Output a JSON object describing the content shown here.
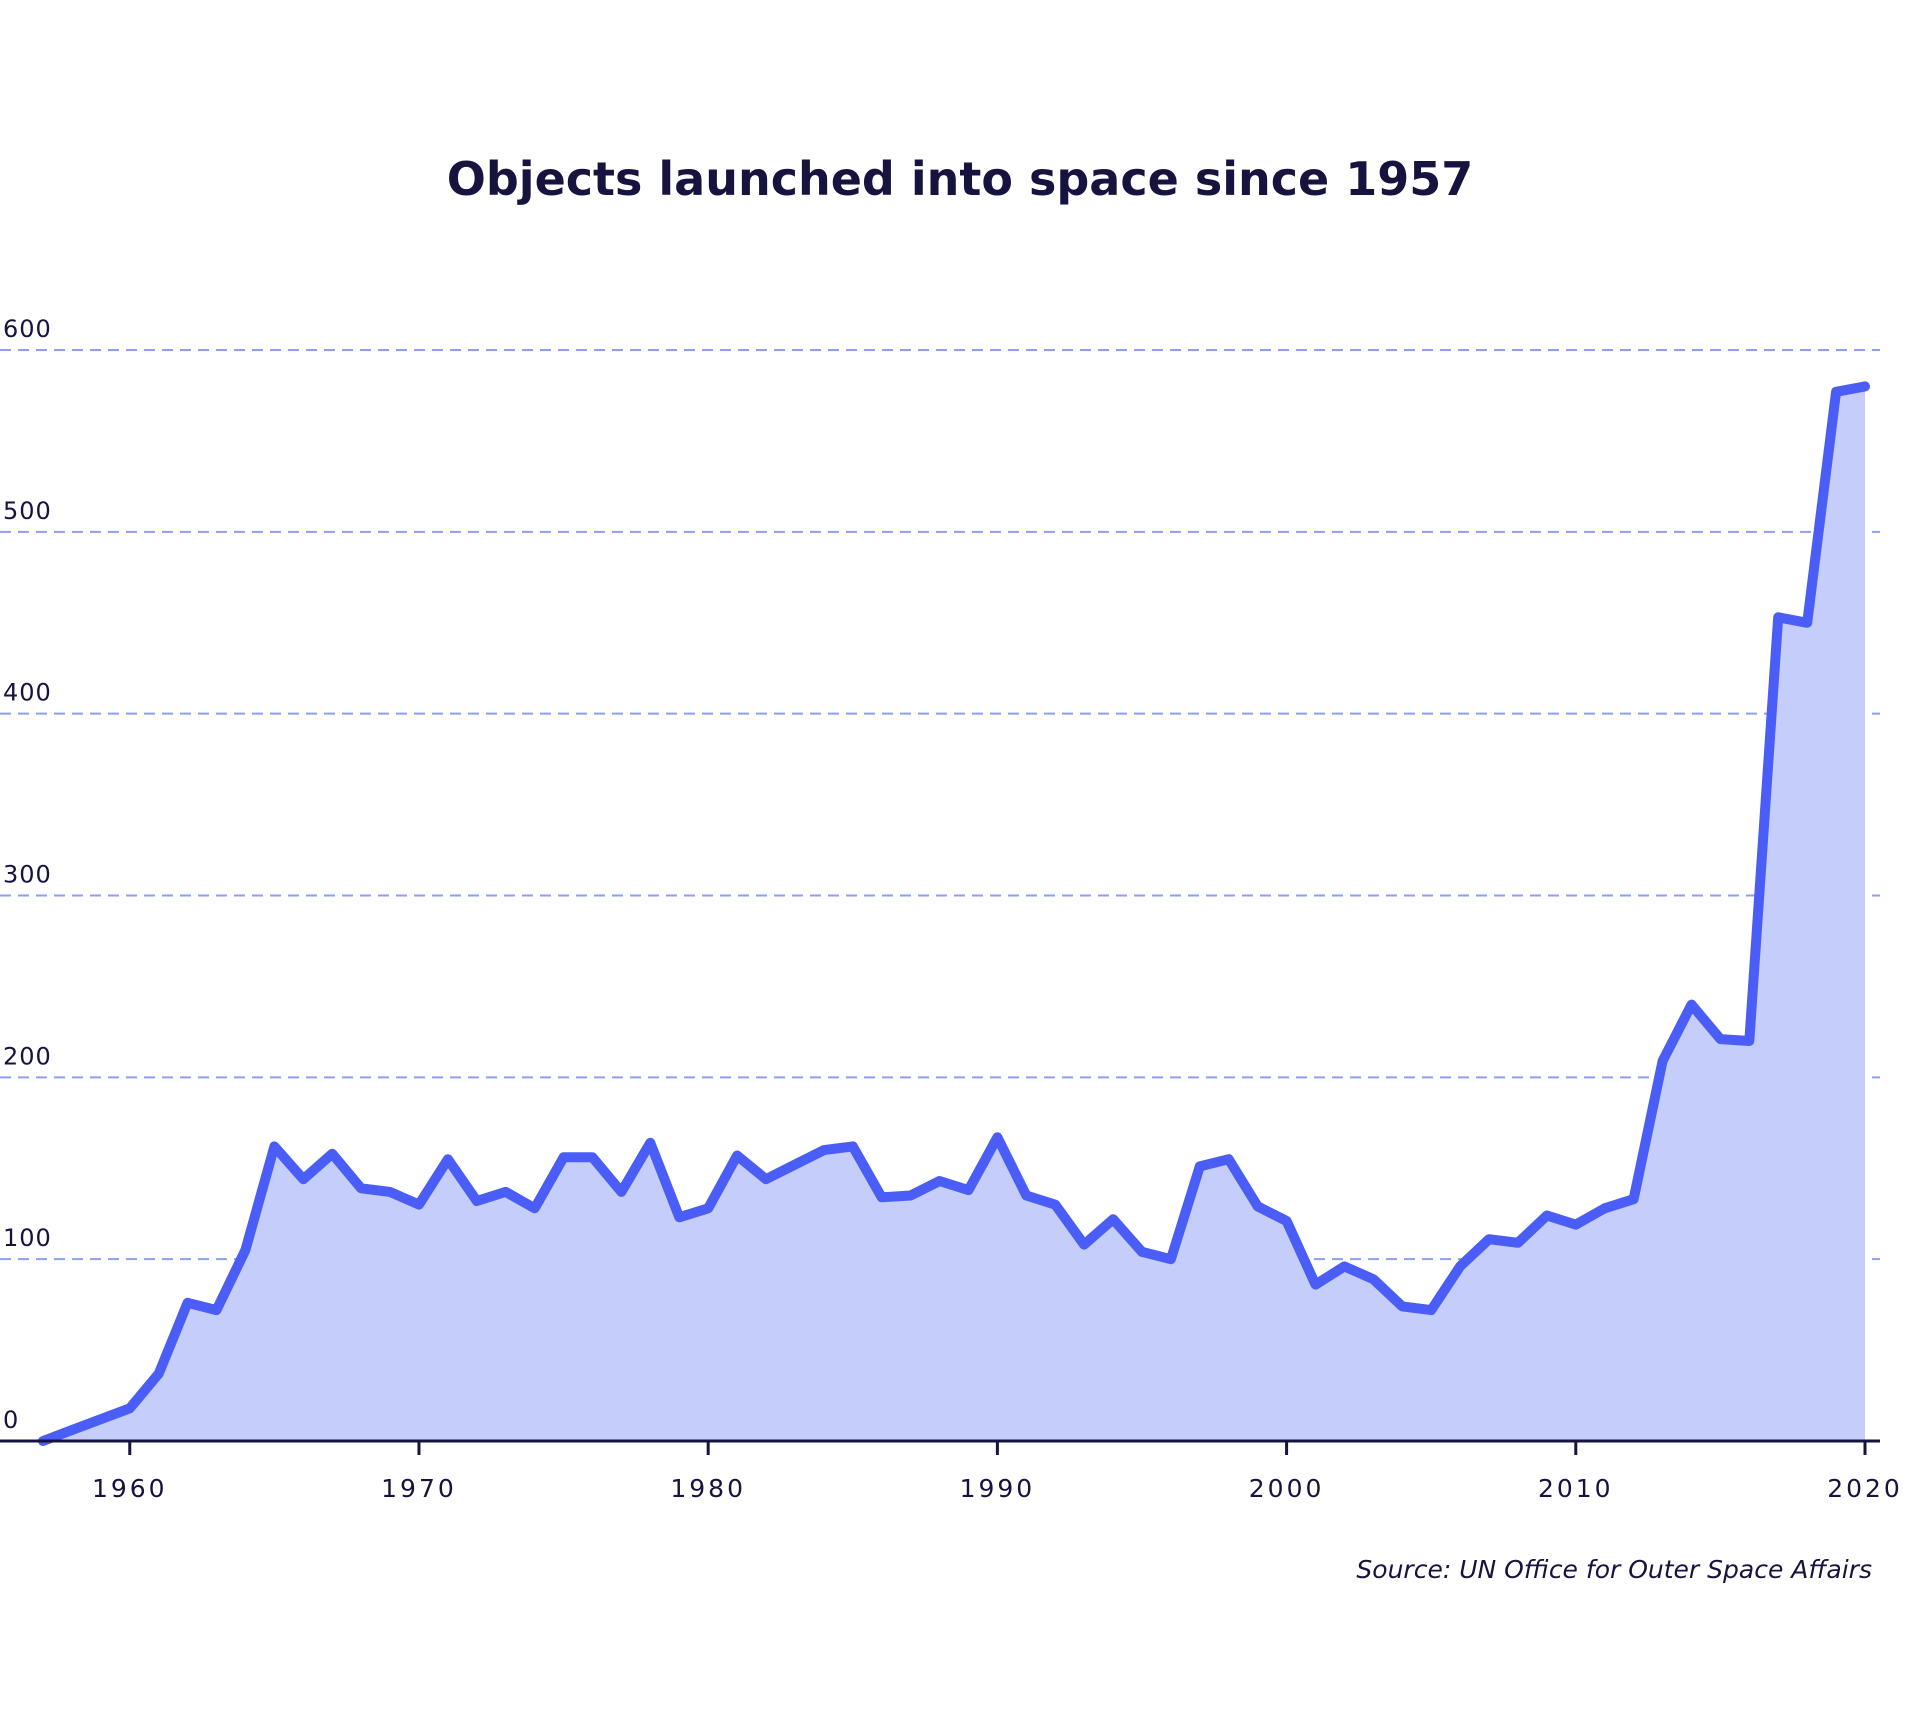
{
  "chart_data": {
    "type": "area",
    "title": "Objects launched into space since 1957",
    "xlabel": "",
    "ylabel": "",
    "source": "Source: UN Office for Outer Space Affairs",
    "xlim": [
      1957,
      2020
    ],
    "ylim": [
      0,
      600
    ],
    "x_ticks": [
      "1960",
      "1970",
      "1980",
      "1990",
      "2000",
      "2010",
      "2020"
    ],
    "y_ticks": [
      "0",
      "100",
      "200",
      "300",
      "400",
      "500",
      "600"
    ],
    "grid": true,
    "legend": "none",
    "colors": {
      "line": "#4a5ef7",
      "fill": "#c5cdfb",
      "grid": "#8f9ef5",
      "axis": "#16133f",
      "text": "#16133f"
    },
    "x": [
      1957,
      1958,
      1959,
      1960,
      1961,
      1962,
      1963,
      1964,
      1965,
      1966,
      1967,
      1968,
      1969,
      1970,
      1971,
      1972,
      1973,
      1974,
      1975,
      1976,
      1977,
      1978,
      1979,
      1980,
      1981,
      1982,
      1983,
      1984,
      1985,
      1986,
      1987,
      1988,
      1989,
      1990,
      1991,
      1992,
      1993,
      1994,
      1995,
      1996,
      1997,
      1998,
      1999,
      2000,
      2001,
      2002,
      2003,
      2004,
      2005,
      2006,
      2007,
      2008,
      2009,
      2010,
      2011,
      2012,
      2013,
      2014,
      2015,
      2016,
      2017,
      2018,
      2019,
      2020
    ],
    "values": [
      0,
      6,
      12,
      18,
      37,
      76,
      72,
      105,
      162,
      144,
      158,
      139,
      137,
      130,
      155,
      132,
      137,
      128,
      156,
      156,
      137,
      164,
      123,
      128,
      157,
      144,
      152,
      160,
      162,
      134,
      135,
      143,
      138,
      167,
      135,
      130,
      108,
      122,
      104,
      100,
      151,
      155,
      129,
      121,
      86,
      96,
      89,
      74,
      72,
      96,
      111,
      109,
      124,
      119,
      128,
      133,
      209,
      240,
      221,
      220,
      453,
      450,
      577,
      580
    ]
  }
}
